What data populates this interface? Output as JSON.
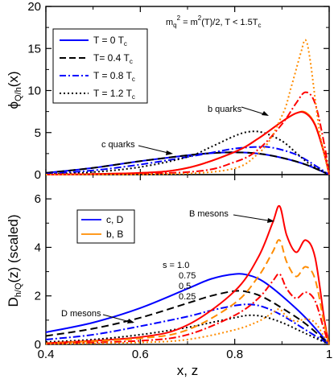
{
  "chart_data": [
    {
      "type": "line",
      "panel": "top",
      "ylabel_main": "ϕ",
      "ylabel_sub": "Q/h",
      "ylabel_tail": "(x)",
      "xlim": [
        0.4,
        1.0
      ],
      "ylim": [
        0,
        20
      ],
      "yticks": [
        "0",
        "5",
        "10",
        "15",
        "20"
      ],
      "condition": {
        "m": "m",
        "q": "q",
        "two": "2",
        "rhs": " = m",
        "two2": "2",
        "rest": "(T)/2,  T < 1.5T",
        "c": "c"
      },
      "annotations": {
        "b_quarks": "b quarks",
        "c_quarks": "c quarks"
      },
      "legend": [
        {
          "label": "T = 0 T",
          "sub": "c",
          "style": "solid",
          "color": "#0000ff"
        },
        {
          "label": "T= 0.4 T",
          "sub": "c",
          "style": "dash",
          "color": "#000000"
        },
        {
          "label": "T = 0.8 T",
          "sub": "c",
          "style": "dashdot",
          "color": "#0000ff"
        },
        {
          "label": "T = 1.2 T",
          "sub": "c",
          "style": "dot",
          "color": "#000000"
        }
      ],
      "series": [
        {
          "name": "c quarks, T = 0",
          "color": "#0000ff",
          "style": "solid",
          "x": [
            0.4,
            0.5,
            0.6,
            0.7,
            0.75,
            0.8,
            0.85,
            0.9,
            0.95,
            1.0
          ],
          "y": [
            0.2,
            0.8,
            1.6,
            2.3,
            2.55,
            2.65,
            2.5,
            2.0,
            1.2,
            0.0
          ]
        },
        {
          "name": "c quarks, T = 0.4",
          "color": "#000000",
          "style": "dash",
          "x": [
            0.4,
            0.5,
            0.6,
            0.7,
            0.75,
            0.8,
            0.85,
            0.9,
            0.95,
            1.0
          ],
          "y": [
            0.2,
            0.8,
            1.6,
            2.3,
            2.55,
            2.65,
            2.5,
            2.0,
            1.2,
            0.0
          ]
        },
        {
          "name": "c quarks, T = 0.8",
          "color": "#0000ff",
          "style": "dashdot",
          "x": [
            0.4,
            0.5,
            0.6,
            0.7,
            0.75,
            0.8,
            0.85,
            0.88,
            0.92,
            0.95,
            1.0
          ],
          "y": [
            0.1,
            0.5,
            1.2,
            2.1,
            2.6,
            3.1,
            3.3,
            3.2,
            2.6,
            1.8,
            0.0
          ]
        },
        {
          "name": "c quarks, T = 1.2",
          "color": "#000000",
          "style": "dot",
          "x": [
            0.4,
            0.5,
            0.6,
            0.7,
            0.75,
            0.8,
            0.83,
            0.86,
            0.9,
            0.93,
            0.96,
            1.0
          ],
          "y": [
            0.05,
            0.3,
            0.9,
            2.1,
            3.3,
            4.6,
            5.1,
            5.0,
            4.0,
            2.6,
            1.2,
            0.0
          ]
        },
        {
          "name": "b quarks, T = 0",
          "color": "#ff8c00",
          "style": "solid",
          "x": [
            0.4,
            0.6,
            0.7,
            0.8,
            0.85,
            0.9,
            0.93,
            0.95,
            0.97,
            0.99,
            1.0
          ],
          "y": [
            0.0,
            0.2,
            0.8,
            2.7,
            4.3,
            6.3,
            7.3,
            7.4,
            6.0,
            2.5,
            0.0
          ]
        },
        {
          "name": "b quarks, T = 0.4",
          "color": "#ff0000",
          "style": "solid",
          "x": [
            0.4,
            0.6,
            0.7,
            0.8,
            0.85,
            0.9,
            0.93,
            0.95,
            0.97,
            0.99,
            1.0
          ],
          "y": [
            0.0,
            0.2,
            0.8,
            2.7,
            4.3,
            6.3,
            7.3,
            7.3,
            5.9,
            2.4,
            0.0
          ]
        },
        {
          "name": "b quarks, T = 0.8",
          "color": "#ff0000",
          "style": "dashdot",
          "x": [
            0.4,
            0.7,
            0.8,
            0.85,
            0.9,
            0.93,
            0.95,
            0.97,
            0.99,
            1.0
          ],
          "y": [
            0.0,
            0.3,
            1.5,
            3.0,
            6.0,
            8.5,
            9.8,
            8.5,
            3.5,
            0.0
          ]
        },
        {
          "name": "b quarks, T = 1.2",
          "color": "#ff8c00",
          "style": "dot",
          "x": [
            0.4,
            0.75,
            0.85,
            0.9,
            0.92,
            0.94,
            0.95,
            0.96,
            0.98,
            1.0
          ],
          "y": [
            0.0,
            0.3,
            2.5,
            7.0,
            10.5,
            14.5,
            16.0,
            13.5,
            5.0,
            0.0
          ]
        }
      ]
    },
    {
      "type": "line",
      "panel": "bottom",
      "xlabel": "x, z",
      "ylabel_main": "D",
      "ylabel_sub": "h/Q",
      "ylabel_tail": "(z) (scaled)",
      "xlim": [
        0.4,
        1.0
      ],
      "ylim": [
        0,
        7
      ],
      "xticks": [
        "0.4",
        "0.6",
        "0.8",
        "1"
      ],
      "yticks": [
        "0",
        "2",
        "4",
        "6"
      ],
      "annotations": {
        "b_mesons": "B mesons",
        "d_mesons": "D mesons"
      },
      "s_values": [
        "s = 1.0",
        "0.75",
        "0.5",
        "0.25"
      ],
      "legend": [
        {
          "label": "c, D",
          "color": "#0000ff"
        },
        {
          "label": "b, B",
          "color": "#ff8c00"
        }
      ],
      "series": [
        {
          "name": "D, s = 1.0",
          "color": "#0000ff",
          "style": "solid",
          "x": [
            0.4,
            0.5,
            0.6,
            0.7,
            0.75,
            0.8,
            0.83,
            0.86,
            0.9,
            0.95,
            1.0
          ],
          "y": [
            0.5,
            0.9,
            1.5,
            2.3,
            2.7,
            2.9,
            2.85,
            2.6,
            2.0,
            1.1,
            0.0
          ]
        },
        {
          "name": "D, s = 0.75",
          "color": "#000000",
          "style": "dash",
          "x": [
            0.4,
            0.5,
            0.6,
            0.7,
            0.75,
            0.8,
            0.83,
            0.86,
            0.9,
            0.95,
            1.0
          ],
          "y": [
            0.35,
            0.65,
            1.1,
            1.7,
            2.0,
            2.2,
            2.15,
            1.95,
            1.5,
            0.85,
            0.0
          ]
        },
        {
          "name": "D, s = 0.5",
          "color": "#0000ff",
          "style": "dashdot",
          "x": [
            0.4,
            0.5,
            0.6,
            0.7,
            0.75,
            0.8,
            0.83,
            0.86,
            0.9,
            0.95,
            1.0
          ],
          "y": [
            0.2,
            0.4,
            0.75,
            1.15,
            1.4,
            1.6,
            1.65,
            1.55,
            1.2,
            0.6,
            0.0
          ]
        },
        {
          "name": "D, s = 0.25",
          "color": "#000000",
          "style": "dot",
          "x": [
            0.4,
            0.5,
            0.6,
            0.7,
            0.75,
            0.8,
            0.83,
            0.86,
            0.9,
            0.95,
            1.0
          ],
          "y": [
            0.1,
            0.2,
            0.4,
            0.7,
            0.9,
            1.1,
            1.2,
            1.15,
            0.9,
            0.45,
            0.0
          ]
        },
        {
          "name": "B, s = 1.0",
          "color": "#ff0000",
          "style": "solid",
          "x": [
            0.4,
            0.6,
            0.7,
            0.8,
            0.85,
            0.88,
            0.895,
            0.91,
            0.93,
            0.95,
            0.97,
            0.99,
            1.0
          ],
          "y": [
            0.05,
            0.3,
            0.8,
            2.2,
            3.6,
            5.0,
            5.7,
            4.5,
            3.8,
            4.3,
            3.6,
            1.0,
            0.0
          ]
        },
        {
          "name": "B, s = 0.75",
          "color": "#ff8c00",
          "style": "dash",
          "x": [
            0.4,
            0.6,
            0.7,
            0.8,
            0.85,
            0.88,
            0.895,
            0.91,
            0.93,
            0.95,
            0.97,
            0.99,
            1.0
          ],
          "y": [
            0.04,
            0.25,
            0.6,
            1.7,
            2.8,
            3.8,
            4.3,
            3.4,
            2.8,
            3.2,
            2.7,
            0.8,
            0.0
          ]
        },
        {
          "name": "B, s = 0.5",
          "color": "#ff0000",
          "style": "dashdot",
          "x": [
            0.4,
            0.6,
            0.7,
            0.8,
            0.85,
            0.88,
            0.895,
            0.91,
            0.93,
            0.95,
            0.97,
            0.99,
            1.0
          ],
          "y": [
            0.03,
            0.15,
            0.4,
            1.2,
            1.9,
            2.6,
            2.9,
            2.3,
            1.9,
            2.15,
            1.8,
            0.55,
            0.0
          ]
        },
        {
          "name": "B, s = 0.25",
          "color": "#ff8c00",
          "style": "dot",
          "x": [
            0.4,
            0.6,
            0.7,
            0.8,
            0.85,
            0.88,
            0.895,
            0.91,
            0.93,
            0.95,
            0.97,
            0.99,
            1.0
          ],
          "y": [
            0.02,
            0.08,
            0.2,
            0.6,
            0.95,
            1.3,
            1.45,
            1.15,
            0.95,
            1.05,
            0.9,
            0.3,
            0.0
          ]
        }
      ]
    }
  ]
}
